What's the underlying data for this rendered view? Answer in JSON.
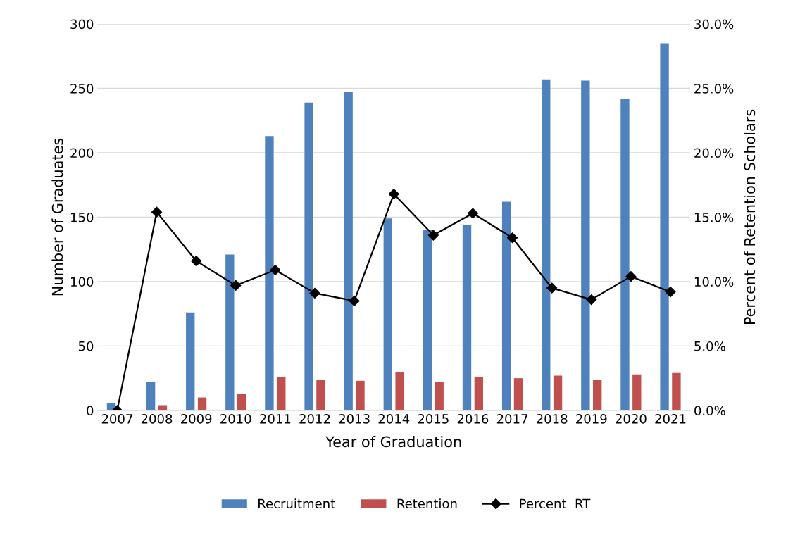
{
  "chart_data": {
    "type": "bar",
    "xlabel": "Year of Graduation",
    "ylabel": "Number of Graduates",
    "y2label": "Percent of Retention Scholars",
    "categories": [
      "2007",
      "2008",
      "2009",
      "2010",
      "2011",
      "2012",
      "2013",
      "2014",
      "2015",
      "2016",
      "2017",
      "2018",
      "2019",
      "2020",
      "2021"
    ],
    "series": [
      {
        "name": "Recruitment",
        "color": "#4f81bd",
        "values": [
          6,
          22,
          76,
          121,
          213,
          239,
          247,
          149,
          140,
          144,
          162,
          257,
          256,
          242,
          285
        ]
      },
      {
        "name": "Retention",
        "color": "#c0504d",
        "values": [
          0,
          4,
          10,
          13,
          26,
          24,
          23,
          30,
          22,
          26,
          25,
          27,
          24,
          28,
          29
        ]
      },
      {
        "name": "Percent  RT",
        "type": "line",
        "axis": "y2",
        "color": "#000000",
        "marker": "diamond",
        "values": [
          0,
          15.4,
          11.6,
          9.7,
          10.9,
          9.1,
          8.5,
          16.8,
          13.6,
          15.3,
          13.4,
          9.5,
          8.6,
          10.4,
          9.2
        ]
      }
    ],
    "ylim": [
      0,
      300
    ],
    "yticks": [
      0,
      50,
      100,
      150,
      200,
      250,
      300
    ],
    "y2lim": [
      0,
      30
    ],
    "y2ticks": [
      {
        "value": 0,
        "label": "0.0%"
      },
      {
        "value": 5,
        "label": "5.0%"
      },
      {
        "value": 10,
        "label": "10.0%"
      },
      {
        "value": 15,
        "label": "15.0%"
      },
      {
        "value": 20,
        "label": "20.0%"
      },
      {
        "value": 25,
        "label": "25.0%"
      },
      {
        "value": 30,
        "label": "30.0%"
      }
    ],
    "grid": "y",
    "legend": "bottom"
  }
}
